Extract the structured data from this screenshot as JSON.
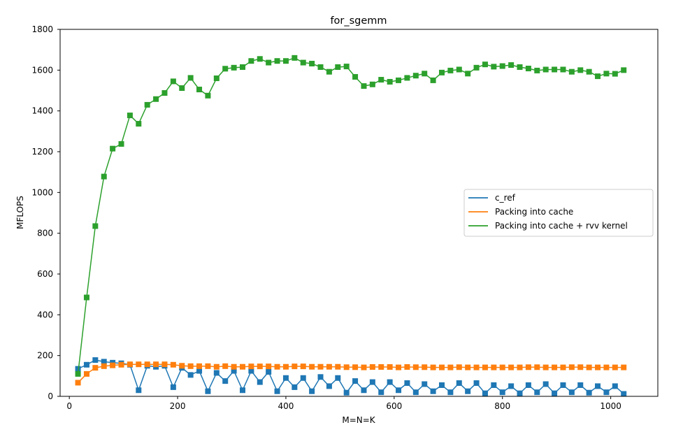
{
  "chart_data": {
    "type": "line",
    "title": "for_sgemm",
    "xlabel": "M=N=K",
    "ylabel": "MFLOPS",
    "xlim": [
      -17,
      1087
    ],
    "ylim": [
      0,
      1800
    ],
    "xticks": [
      0,
      200,
      400,
      600,
      800,
      1000
    ],
    "yticks": [
      0,
      200,
      400,
      600,
      800,
      1000,
      1200,
      1400,
      1600,
      1800
    ],
    "grid": false,
    "legend_position": "center-right",
    "marker": "square",
    "x": [
      16,
      32,
      48,
      64,
      80,
      96,
      112,
      128,
      144,
      160,
      176,
      192,
      208,
      224,
      240,
      256,
      272,
      288,
      304,
      320,
      336,
      352,
      368,
      384,
      400,
      416,
      432,
      448,
      464,
      480,
      496,
      512,
      528,
      544,
      560,
      576,
      592,
      608,
      624,
      640,
      656,
      672,
      688,
      704,
      720,
      736,
      752,
      768,
      784,
      800,
      816,
      832,
      848,
      864,
      880,
      896,
      912,
      928,
      944,
      960,
      976,
      992,
      1008,
      1024
    ],
    "series": [
      {
        "name": "c_ref",
        "color": "#1f77b4",
        "values": [
          135,
          155,
          178,
          170,
          165,
          162,
          155,
          30,
          150,
          145,
          150,
          45,
          140,
          105,
          125,
          25,
          115,
          75,
          125,
          30,
          125,
          70,
          120,
          25,
          90,
          45,
          90,
          25,
          95,
          50,
          90,
          18,
          75,
          30,
          70,
          20,
          70,
          30,
          65,
          20,
          60,
          25,
          55,
          20,
          65,
          25,
          65,
          15,
          55,
          20,
          50,
          15,
          55,
          20,
          60,
          15,
          55,
          20,
          55,
          18,
          50,
          20,
          50,
          12
        ]
      },
      {
        "name": "Packing into cache",
        "color": "#ff7f0e",
        "values": [
          67,
          110,
          140,
          148,
          152,
          155,
          157,
          157,
          157,
          157,
          157,
          155,
          150,
          148,
          148,
          148,
          145,
          148,
          145,
          145,
          147,
          147,
          147,
          145,
          145,
          147,
          147,
          145,
          145,
          145,
          145,
          143,
          143,
          142,
          144,
          144,
          144,
          142,
          144,
          143,
          143,
          142,
          142,
          142,
          143,
          142,
          142,
          142,
          142,
          142,
          142,
          142,
          143,
          143,
          142,
          142,
          142,
          143,
          143,
          142,
          142,
          142,
          142,
          142
        ]
      },
      {
        "name": "Packing into cache + rvv kernel",
        "color": "#2ca02c",
        "values": [
          110,
          485,
          835,
          1078,
          1215,
          1238,
          1378,
          1337,
          1430,
          1458,
          1488,
          1545,
          1512,
          1562,
          1505,
          1475,
          1560,
          1607,
          1612,
          1615,
          1645,
          1655,
          1637,
          1645,
          1645,
          1660,
          1637,
          1632,
          1615,
          1592,
          1615,
          1618,
          1567,
          1522,
          1530,
          1553,
          1543,
          1550,
          1562,
          1573,
          1583,
          1550,
          1588,
          1598,
          1603,
          1583,
          1612,
          1628,
          1617,
          1620,
          1625,
          1615,
          1608,
          1598,
          1603,
          1603,
          1603,
          1592,
          1600,
          1592,
          1570,
          1583,
          1582,
          1600
        ]
      }
    ]
  }
}
